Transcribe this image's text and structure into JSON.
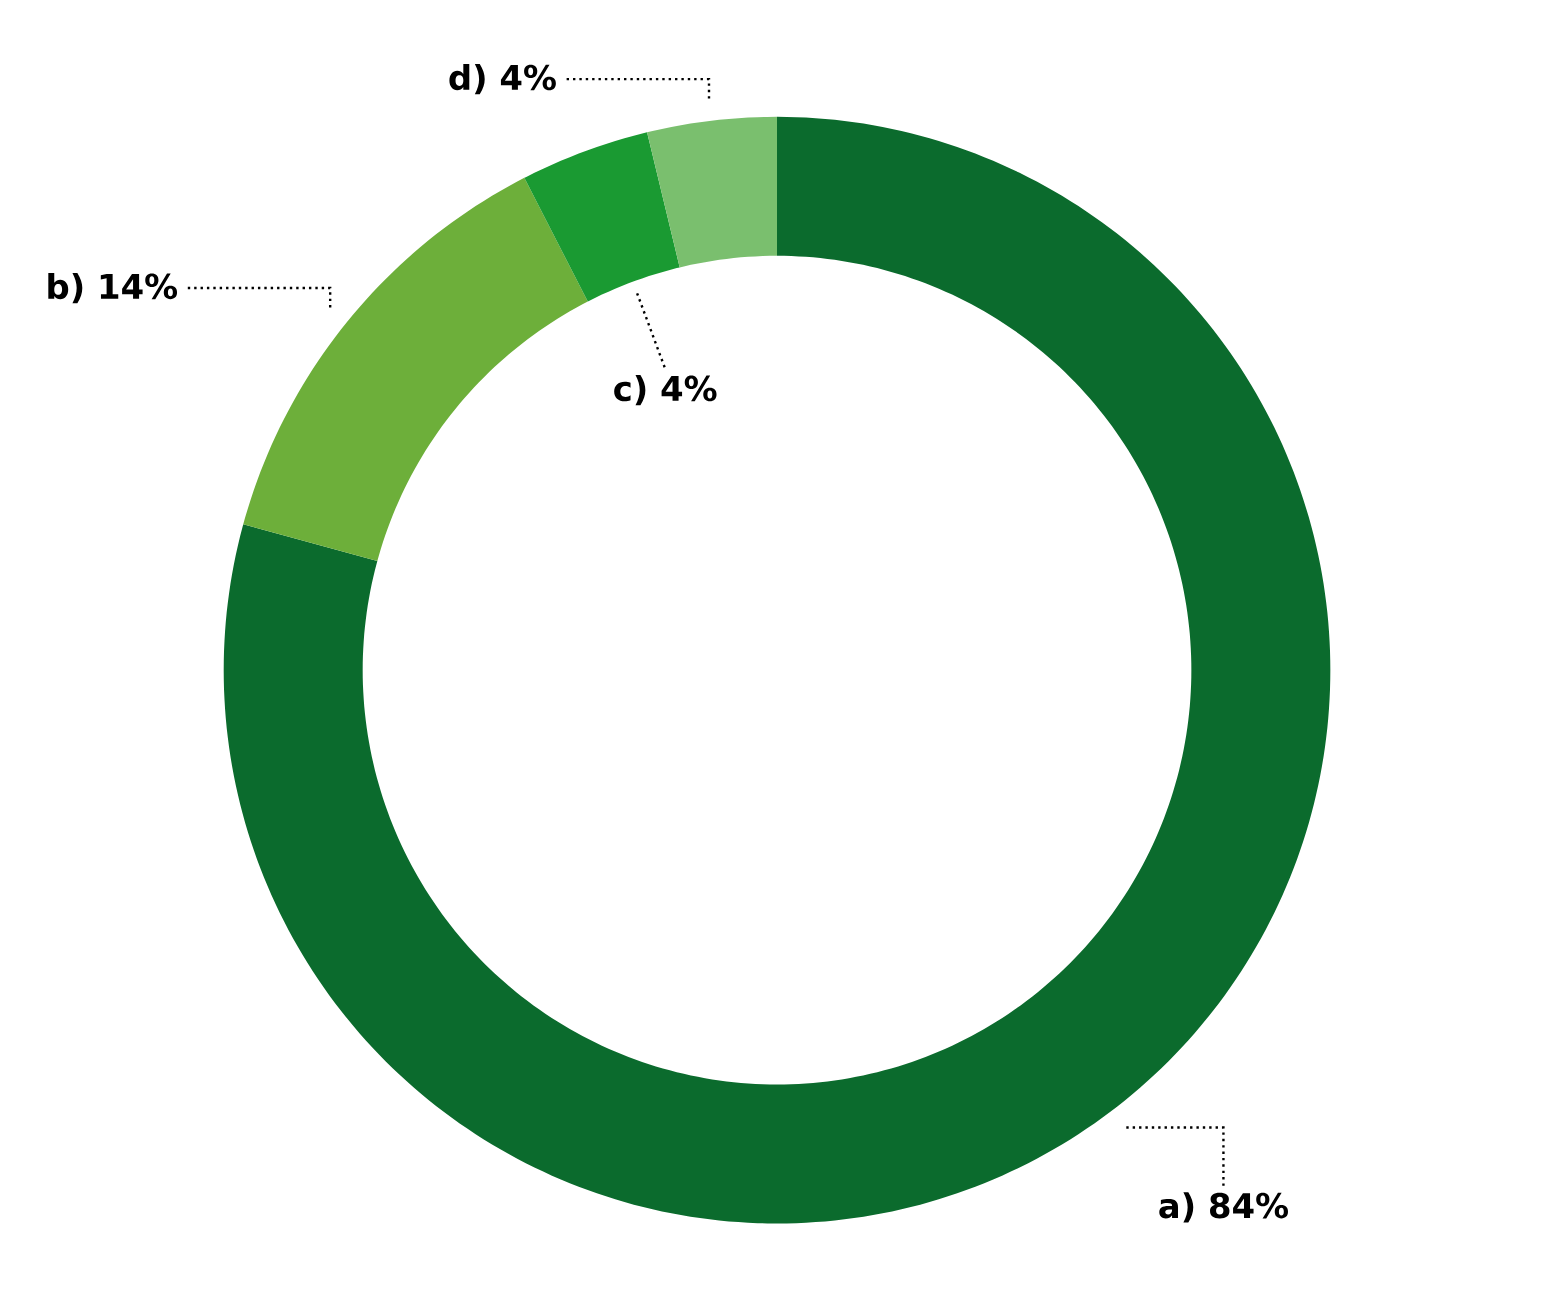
{
  "chart_data": {
    "type": "donut",
    "categories": [
      "a)",
      "b)",
      "c)",
      "d)"
    ],
    "values": [
      84,
      14,
      4,
      4
    ],
    "value_labels": [
      "84%",
      "14%",
      "4%",
      "4%"
    ],
    "colors": [
      "#0b6b2d",
      "#6daf3a",
      "#1a9a32",
      "#7abf6e"
    ]
  }
}
